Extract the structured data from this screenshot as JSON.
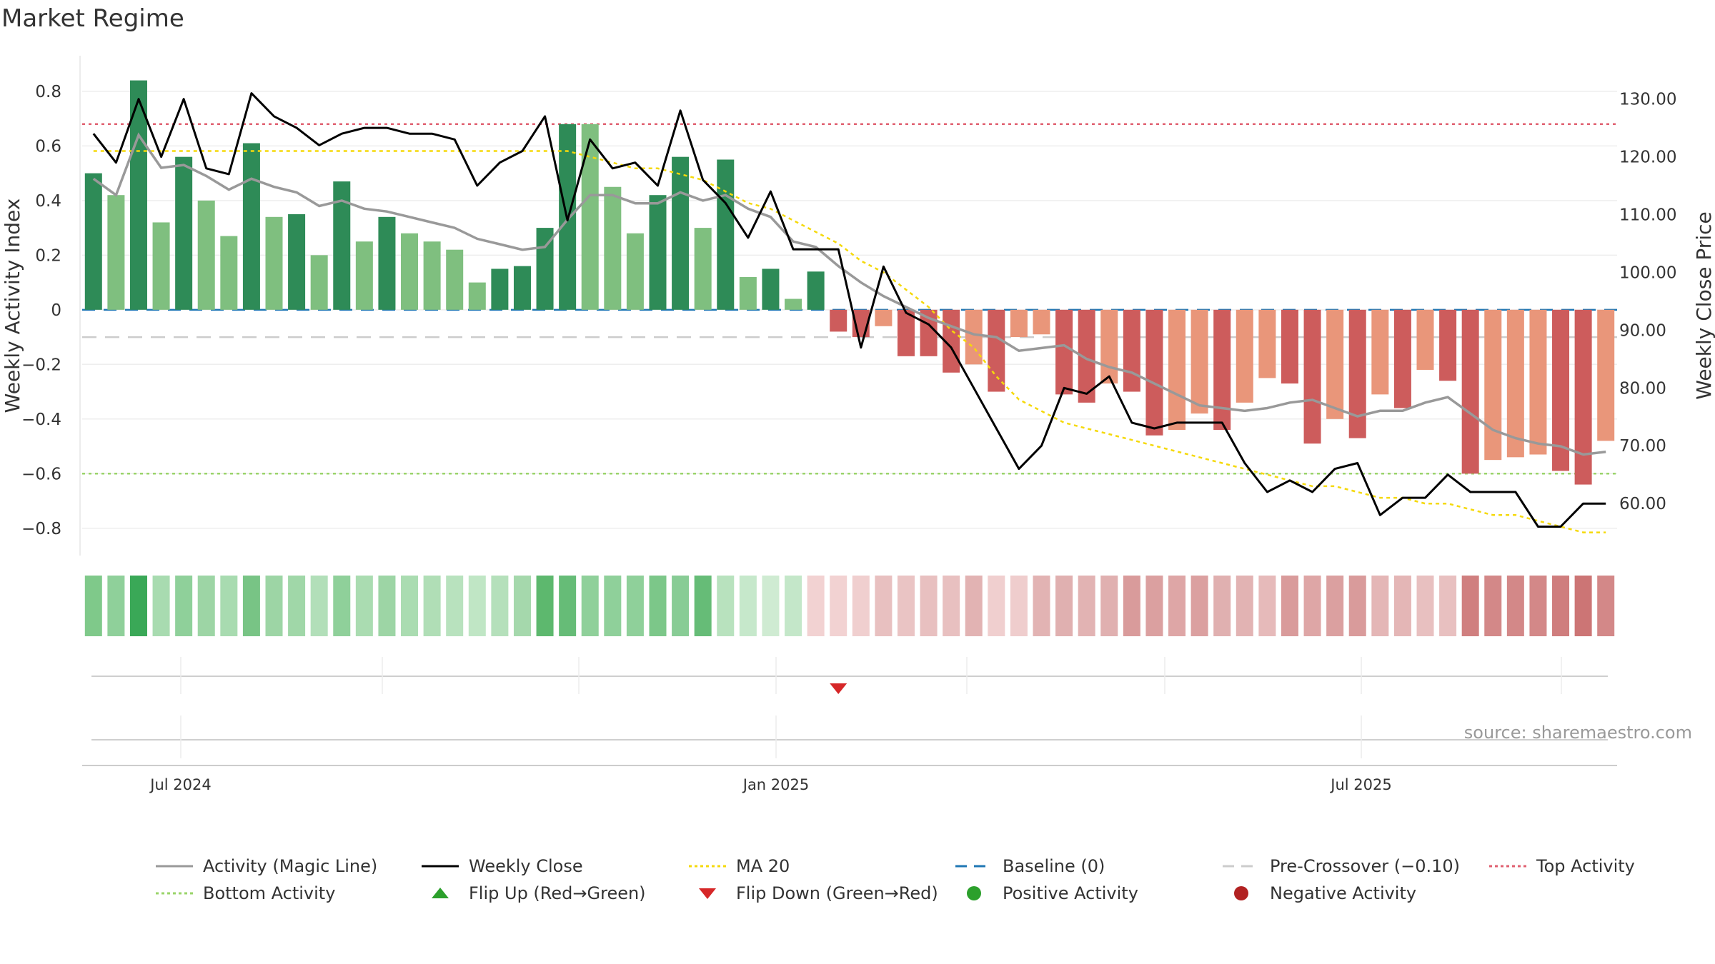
{
  "page": {
    "title": "Market Regime",
    "source": "source: sharemaestro.com"
  },
  "colors": {
    "dark_green": "#2e8b57",
    "light_green": "#7fbf7f",
    "dark_red": "#cd5c5c",
    "light_red": "#e9967a",
    "activity_line": "#999999",
    "close_line": "#000000",
    "ma_line": "#f5d90a",
    "baseline": "#1f77b4",
    "pre_crossover": "#cccccc",
    "top_line": "#e06070",
    "bottom_line": "#9ad46a",
    "flip_up": "#2ca02c",
    "flip_down": "#d62728",
    "positive_dot": "#2ca02c",
    "negative_dot": "#b22222"
  },
  "chart_data": {
    "type": "bar",
    "title": "Market Regime",
    "ylabel": "Weekly Activity Index",
    "y2label": "Weekly Close Price",
    "ylim": [
      -0.9,
      0.92
    ],
    "y2lim": [
      51,
      137
    ],
    "yticks": [
      "0.8",
      "0.6",
      "0.4",
      "0.2",
      "0",
      "−0.2",
      "−0.4",
      "−0.6",
      "−0.8"
    ],
    "y2ticks": [
      "130.00",
      "120.00",
      "110.00",
      "100.00",
      "90.00",
      "80.00",
      "70.00",
      "60.00"
    ],
    "xticks": [
      "Jul 2024",
      "Jan 2025",
      "Jul 2025"
    ],
    "grid": true,
    "legend_placement": "bottom",
    "top_activity": 0.68,
    "bottom_activity": -0.6,
    "pre_crossover": -0.1,
    "baseline": 0,
    "activity_bars": [
      0.5,
      0.42,
      0.84,
      0.32,
      0.56,
      0.4,
      0.27,
      0.61,
      0.34,
      0.35,
      0.2,
      0.47,
      0.25,
      0.34,
      0.28,
      0.25,
      0.22,
      0.1,
      0.15,
      0.16,
      0.3,
      0.68,
      0.68,
      0.45,
      0.28,
      0.42,
      0.56,
      0.3,
      0.55,
      0.12,
      0.15,
      0.04,
      0.14,
      -0.08,
      -0.1,
      -0.06,
      -0.17,
      -0.17,
      -0.23,
      -0.2,
      -0.3,
      -0.1,
      -0.09,
      -0.31,
      -0.34,
      -0.27,
      -0.3,
      -0.46,
      -0.44,
      -0.38,
      -0.44,
      -0.34,
      -0.25,
      -0.27,
      -0.49,
      -0.4,
      -0.47,
      -0.31,
      -0.36,
      -0.22,
      -0.26,
      -0.6,
      -0.55,
      -0.54,
      -0.53,
      -0.59,
      -0.64,
      -0.48
    ],
    "bar_strength": [
      "dark",
      "light",
      "dark",
      "light",
      "dark",
      "light",
      "light",
      "dark",
      "light",
      "dark",
      "light",
      "dark",
      "light",
      "dark",
      "light",
      "light",
      "light",
      "light",
      "dark",
      "dark",
      "dark",
      "dark",
      "light",
      "light",
      "light",
      "dark",
      "dark",
      "light",
      "dark",
      "light",
      "dark",
      "light",
      "dark",
      "dark",
      "dark",
      "light",
      "dark",
      "dark",
      "dark",
      "light",
      "dark",
      "light",
      "light",
      "dark",
      "dark",
      "light",
      "dark",
      "dark",
      "light",
      "light",
      "dark",
      "light",
      "light",
      "dark",
      "dark",
      "light",
      "dark",
      "light",
      "dark",
      "light",
      "dark",
      "dark",
      "light",
      "light",
      "light",
      "dark",
      "dark",
      "light"
    ],
    "activity_magic_line": [
      0.48,
      0.42,
      0.64,
      0.52,
      0.53,
      0.49,
      0.44,
      0.48,
      0.45,
      0.43,
      0.38,
      0.4,
      0.37,
      0.36,
      0.34,
      0.32,
      0.3,
      0.26,
      0.24,
      0.22,
      0.23,
      0.33,
      0.42,
      0.42,
      0.39,
      0.39,
      0.43,
      0.4,
      0.42,
      0.37,
      0.34,
      0.25,
      0.23,
      0.16,
      0.1,
      0.05,
      0.01,
      -0.03,
      -0.06,
      -0.09,
      -0.1,
      -0.15,
      -0.14,
      -0.13,
      -0.18,
      -0.21,
      -0.23,
      -0.27,
      -0.31,
      -0.35,
      -0.36,
      -0.37,
      -0.36,
      -0.34,
      -0.33,
      -0.36,
      -0.39,
      -0.37,
      -0.37,
      -0.34,
      -0.32,
      -0.38,
      -0.44,
      -0.47,
      -0.49,
      -0.5,
      -0.53,
      -0.52
    ],
    "weekly_close": [
      124,
      119,
      130,
      120,
      130,
      118,
      117,
      131,
      127,
      125,
      122,
      124,
      125,
      125,
      124,
      124,
      123,
      115,
      119,
      121,
      127,
      109,
      123,
      118,
      119,
      115,
      128,
      116,
      112,
      106,
      114,
      104,
      104,
      104,
      87,
      101,
      93,
      91,
      87,
      80,
      73,
      66,
      70,
      80,
      79,
      82,
      74,
      73,
      74,
      74,
      74,
      67,
      62,
      64,
      62,
      66,
      67,
      58,
      61,
      61,
      65,
      62,
      62,
      62,
      56,
      56,
      60,
      60
    ],
    "ma20": [
      121,
      121,
      121,
      121,
      121,
      121,
      121,
      121,
      121,
      121,
      121,
      121,
      121,
      121,
      121,
      121,
      121,
      121,
      121,
      121,
      121,
      121,
      120,
      119,
      118,
      118,
      117,
      116,
      114,
      112,
      111,
      109,
      107,
      105,
      102,
      100,
      97,
      94,
      90,
      87,
      82,
      78,
      76,
      74,
      73,
      72,
      71,
      70,
      69,
      68,
      67,
      66,
      65,
      64,
      63,
      63,
      62,
      61,
      61,
      60,
      60,
      59,
      58,
      58,
      57,
      56,
      55,
      55
    ],
    "heat_strip": [
      "#7fc98a",
      "#8fd09a",
      "#3aa857",
      "#a8dbb0",
      "#8fd09a",
      "#9dd5a5",
      "#a8dbb0",
      "#78c485",
      "#9dd5a5",
      "#a0d7a8",
      "#b2dfb9",
      "#8fd09a",
      "#aadcb1",
      "#9dd5a5",
      "#aadcb1",
      "#b0deb6",
      "#b8e2be",
      "#c0e6c5",
      "#b5e0bb",
      "#a5d8ac",
      "#5db86e",
      "#66bc77",
      "#8fd09a",
      "#8fd09a",
      "#8fd09a",
      "#7cc789",
      "#88cc95",
      "#66bc77",
      "#b8e2be",
      "#c6e8cb",
      "#cfebd2",
      "#c4e7c9",
      "#f2d2d2",
      "#f2d2d2",
      "#f0cfcf",
      "#e8c0c0",
      "#eac4c4",
      "#e8c0c0",
      "#e8c0c0",
      "#e2b3b3",
      "#f0cfcf",
      "#efcdcd",
      "#e2b3b3",
      "#e0b0b0",
      "#e2b3b3",
      "#e0b0b0",
      "#d99b9b",
      "#dba0a0",
      "#dea6a6",
      "#dba0a0",
      "#e0b0b0",
      "#e2b3b3",
      "#e6baba",
      "#d99b9b",
      "#dea6a6",
      "#dba0a0",
      "#d99b9b",
      "#e4b6b6",
      "#e4b6b6",
      "#e8c0c0",
      "#e8c0c0",
      "#d07f7f",
      "#d38888",
      "#d38888",
      "#d38888",
      "#cf7d7d",
      "#cc7575",
      "#d38888"
    ],
    "flip_down_index": 33
  },
  "legend": [
    {
      "label": "Activity (Magic Line)",
      "symbol": "line-solid-gray"
    },
    {
      "label": "Weekly Close",
      "symbol": "line-solid-black"
    },
    {
      "label": "MA 20",
      "symbol": "line-dotted-yellow"
    },
    {
      "label": "Baseline (0)",
      "symbol": "line-dashed-blue"
    },
    {
      "label": "Pre-Crossover (−0.10)",
      "symbol": "line-dashed-gray"
    },
    {
      "label": "Top Activity",
      "symbol": "line-dotted-red"
    },
    {
      "label": "Bottom Activity",
      "symbol": "line-dotted-green"
    },
    {
      "label": "Flip Up (Red→Green)",
      "symbol": "triangle-up-green"
    },
    {
      "label": "Flip Down (Green→Red)",
      "symbol": "triangle-down-red"
    },
    {
      "label": "Positive Activity",
      "symbol": "dot-green"
    },
    {
      "label": "Negative Activity",
      "symbol": "dot-red"
    }
  ]
}
